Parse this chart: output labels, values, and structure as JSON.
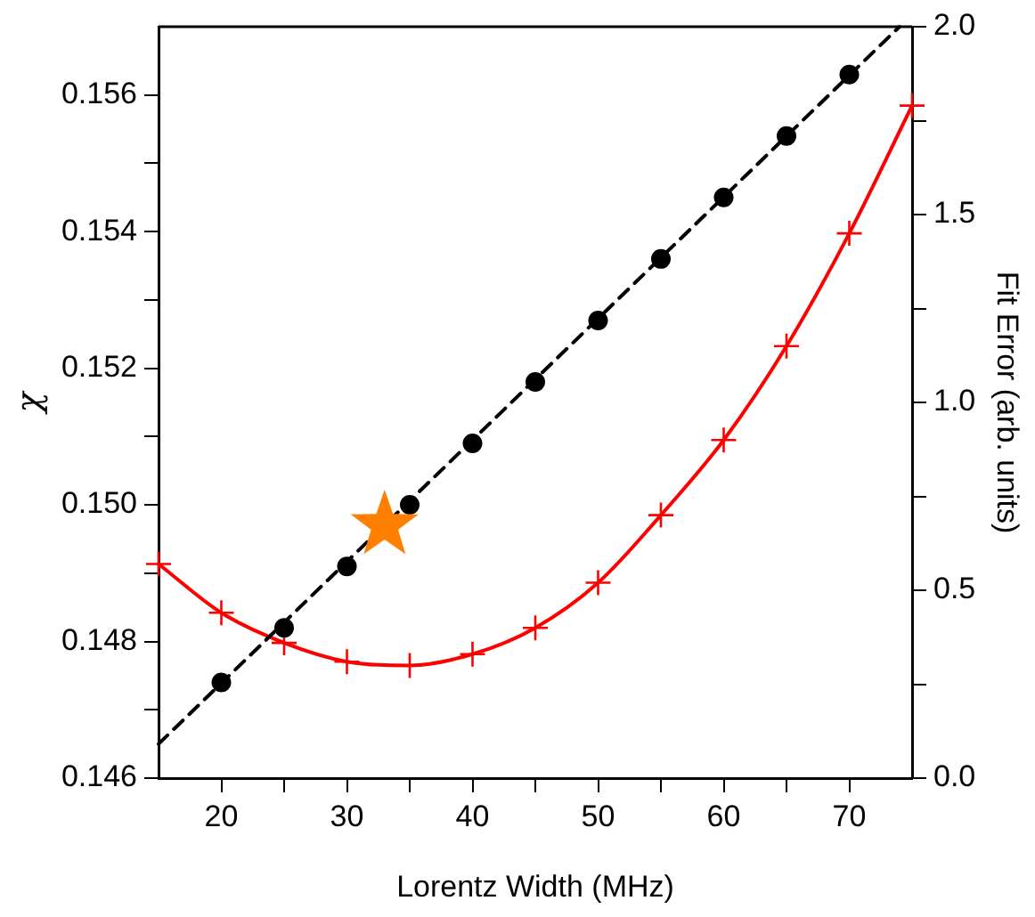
{
  "chart_data": {
    "type": "scatter",
    "xlabel": "Lorentz Width (MHz)",
    "ylabel": "χ",
    "y2label": "Fit Error (arb. units)",
    "xlim": [
      15,
      75
    ],
    "xticks": [
      20,
      {
        "value": 25,
        "label": null
      },
      30,
      {
        "value": 35,
        "label": null
      },
      40,
      {
        "value": 45,
        "label": null
      },
      50,
      {
        "value": 55,
        "label": null
      },
      60,
      {
        "value": 65,
        "label": null
      },
      70
    ],
    "ylim": [
      0.146,
      0.157
    ],
    "yticks": [
      0.146,
      {
        "value": 0.147,
        "label": null
      },
      0.148,
      {
        "value": 0.149,
        "label": null
      },
      {
        "value": 0.15,
        "label": "0.150"
      },
      {
        "value": 0.151,
        "label": null
      },
      0.152,
      {
        "value": 0.153,
        "label": null
      },
      0.154,
      {
        "value": 0.155,
        "label": null
      },
      0.156
    ],
    "y2lim": [
      0,
      2
    ],
    "y2ticks": [
      {
        "value": 0,
        "label": "0.0"
      },
      {
        "value": 0.25,
        "label": null
      },
      {
        "value": 0.5,
        "label": "0.5"
      },
      {
        "value": 0.75,
        "label": null
      },
      {
        "value": 1,
        "label": "1.0"
      },
      {
        "value": 1.25,
        "label": null
      },
      {
        "value": 1.5,
        "label": "1.5"
      },
      {
        "value": 1.75,
        "label": null
      },
      {
        "value": 2,
        "label": "2.0"
      }
    ],
    "grid": false,
    "legend": false,
    "series": [
      {
        "type": "line",
        "color": "#000000",
        "marker": "none",
        "line_style": "dashed",
        "x": [
          15,
          74
        ],
        "values": [
          0.1465,
          0.157
        ]
      },
      {
        "type": "scatter",
        "color": "#000000",
        "marker": "circle",
        "x": [
          20,
          25,
          30,
          35,
          40,
          45,
          50,
          55,
          60,
          65,
          70
        ],
        "values": [
          0.1474,
          0.1482,
          0.1491,
          0.15,
          0.1509,
          0.1518,
          0.1527,
          0.1536,
          0.1545,
          0.1554,
          0.1563
        ]
      },
      {
        "type": "line",
        "axis": "y2",
        "color": "#ff0000",
        "marker": "cross",
        "line_style": "solid",
        "x": [
          15,
          20,
          25,
          30,
          35,
          40,
          45,
          50,
          55,
          60,
          65,
          70,
          75
        ],
        "values": [
          0.57,
          0.44,
          0.36,
          0.31,
          0.3,
          0.33,
          0.4,
          0.52,
          0.7,
          0.9,
          1.15,
          1.45,
          1.79
        ]
      },
      {
        "type": "scatter",
        "color": "#ff8000",
        "marker": "star",
        "x": [
          33
        ],
        "values": [
          0.1497
        ]
      }
    ]
  }
}
